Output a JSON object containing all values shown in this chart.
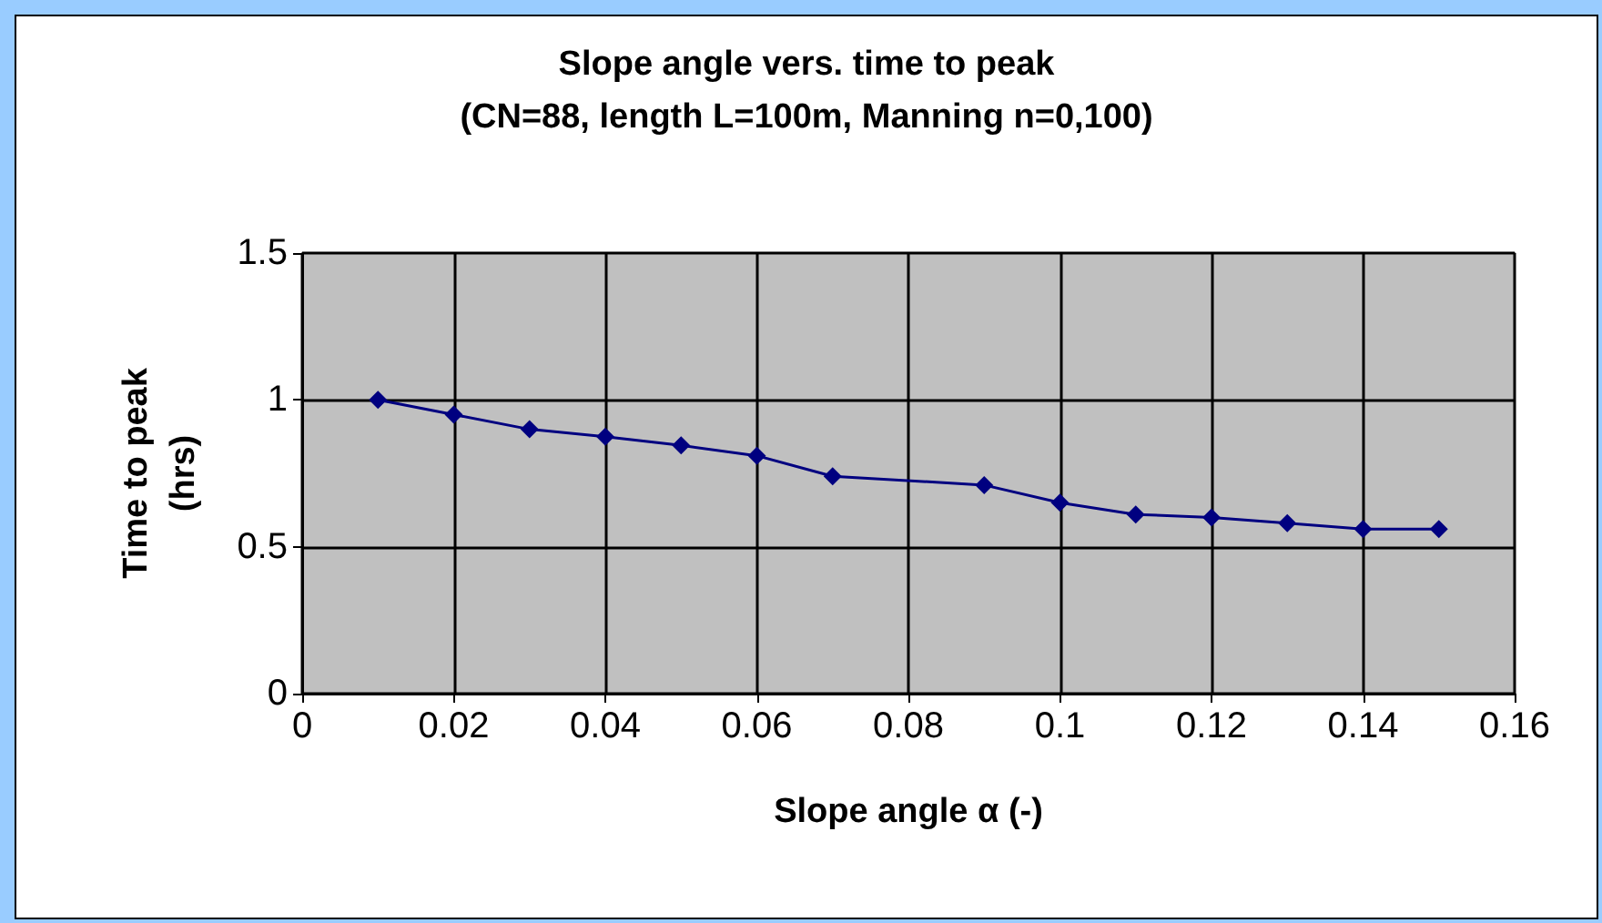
{
  "chart_data": {
    "type": "line",
    "title": "Slope angle vers. time to peak",
    "subtitle": "(CN=88, length L=100m, Manning n=0,100)",
    "xlabel": "Slope angle α (-)",
    "ylabel": "Time to peak\n(hrs)",
    "x": [
      0.01,
      0.02,
      0.03,
      0.04,
      0.05,
      0.06,
      0.07,
      0.09,
      0.1,
      0.11,
      0.12,
      0.13,
      0.14,
      0.15
    ],
    "series": [
      {
        "color": "#000080",
        "values": [
          1.0,
          0.95,
          0.9,
          0.875,
          0.845,
          0.81,
          0.74,
          0.71,
          0.65,
          0.61,
          0.6,
          0.58,
          0.56,
          0.56
        ]
      }
    ],
    "xlim": [
      0,
      0.16
    ],
    "xticks": [
      0,
      0.02,
      0.04,
      0.06,
      0.08,
      0.1,
      0.12,
      0.14,
      0.16
    ],
    "ylim": [
      0,
      1.5
    ],
    "yticks": [
      0,
      0.5,
      1,
      1.5
    ],
    "grid": true,
    "marker": "diamond",
    "line_style": "solid"
  }
}
